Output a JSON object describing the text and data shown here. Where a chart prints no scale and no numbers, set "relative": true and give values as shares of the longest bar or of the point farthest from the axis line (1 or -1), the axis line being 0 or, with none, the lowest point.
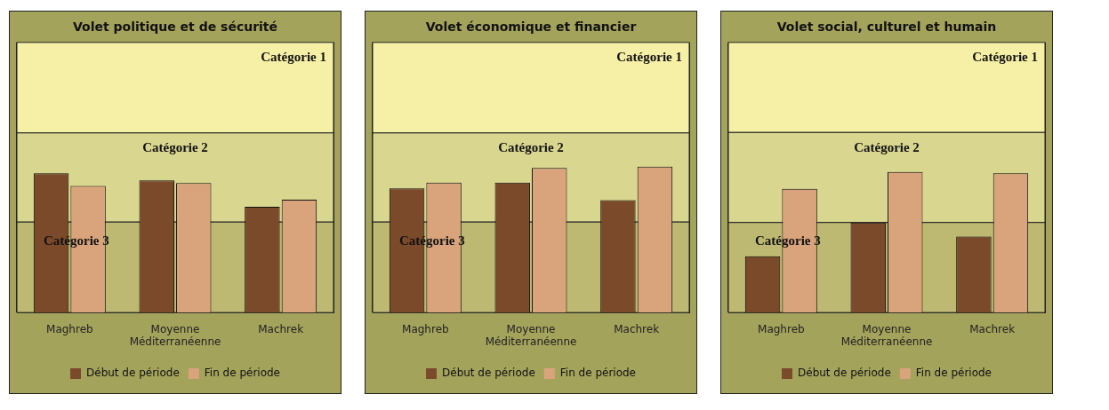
{
  "chart_data": [
    {
      "type": "bar",
      "title": "Volet politique et de sécurité",
      "categories": [
        "Maghreb",
        "Moyenne Méditerranéenne",
        "Machrek"
      ],
      "relative": true,
      "legend": "bottom",
      "grid": "x",
      "series": [
        {
          "name": "Début de période",
          "color": "#7a4a2a",
          "values": [
            1,
            0.95,
            0.76
          ]
        },
        {
          "name": "Fin de période",
          "color": "#d9a47c",
          "values": [
            0.91,
            0.93,
            0.81
          ]
        }
      ],
      "bands": [
        {
          "axis": "y",
          "from": 1.29,
          "to": 1.94,
          "label": "Catégorie 1",
          "color": "#f6f0a6"
        },
        {
          "axis": "y",
          "from": 0.65,
          "to": 1.29,
          "label": "Catégorie 2",
          "color": "#d9d690"
        },
        {
          "axis": "y",
          "from": 0,
          "to": 0.65,
          "label": "Catégorie 3",
          "color": "#bdb872"
        }
      ]
    },
    {
      "type": "bar",
      "title": "Volet économique et financier",
      "categories": [
        "Maghreb",
        "Moyenne Méditerranéenne",
        "Machrek"
      ],
      "relative": true,
      "legend": "bottom",
      "grid": "x",
      "series": [
        {
          "name": "Début de période",
          "color": "#7a4a2a",
          "values": [
            0.85,
            0.89,
            0.77
          ]
        },
        {
          "name": "Fin de période",
          "color": "#d9a47c",
          "values": [
            0.89,
            0.99,
            1
          ]
        }
      ],
      "bands": [
        {
          "axis": "y",
          "from": 1.23,
          "to": 1.85,
          "label": "Catégorie 1",
          "color": "#f6f0a6"
        },
        {
          "axis": "y",
          "from": 0.62,
          "to": 1.23,
          "label": "Catégorie 2",
          "color": "#d9d690"
        },
        {
          "axis": "y",
          "from": 0,
          "to": 0.62,
          "label": "Catégorie 3",
          "color": "#bdb872"
        }
      ]
    },
    {
      "type": "bar",
      "title": "Volet social, culturel et humain",
      "categories": [
        "Maghreb",
        "Moyenne Méditerranéenne",
        "Machrek"
      ],
      "relative": true,
      "legend": "bottom",
      "grid": "x",
      "series": [
        {
          "name": "Début de période",
          "color": "#7a4a2a",
          "values": [
            0.4,
            0.64,
            0.54
          ]
        },
        {
          "name": "Fin de période",
          "color": "#d9a47c",
          "values": [
            0.88,
            1,
            0.99
          ]
        }
      ],
      "bands": [
        {
          "axis": "y",
          "from": 1.28,
          "to": 1.92,
          "label": "Catégorie 1",
          "color": "#f6f0a6"
        },
        {
          "axis": "y",
          "from": 0.64,
          "to": 1.28,
          "label": "Catégorie 2",
          "color": "#d9d690"
        },
        {
          "axis": "y",
          "from": 0,
          "to": 0.64,
          "label": "Catégorie 3",
          "color": "#bdb872"
        }
      ]
    }
  ]
}
